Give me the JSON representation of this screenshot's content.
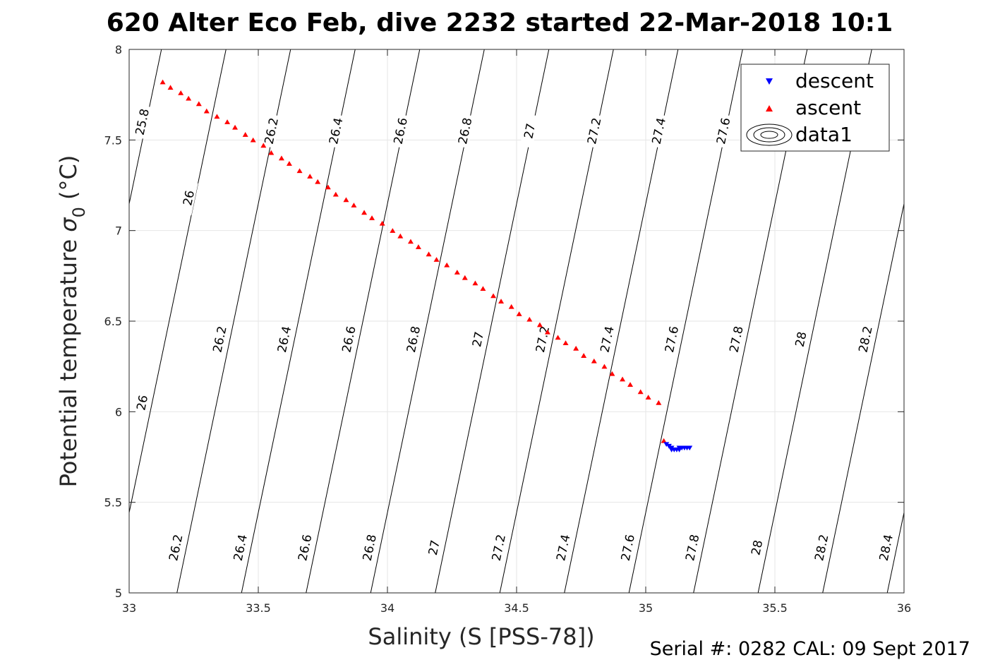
{
  "chart_data": {
    "type": "scatter",
    "title": "620 Alter Eco Feb, dive 2232 started 22-Mar-2018 10:1",
    "xlabel": "Salinity (S [PSS-78])",
    "ylabel_main": "Potential temperature ",
    "ylabel_sym": "σ",
    "ylabel_sub": "0",
    "ylabel_unit": " (°C)",
    "xlim": [
      33,
      36
    ],
    "ylim": [
      5,
      8
    ],
    "xticks": [
      33,
      33.5,
      34,
      34.5,
      35,
      35.5,
      36
    ],
    "xtick_labels": [
      "33",
      "33.5",
      "34",
      "34.5",
      "35",
      "35.5",
      "36"
    ],
    "yticks": [
      5,
      5.5,
      6,
      6.5,
      7,
      7.5,
      8
    ],
    "ytick_labels": [
      "5",
      "5.5",
      "6",
      "6.5",
      "7",
      "7.5",
      "8"
    ],
    "grid": true,
    "legend_position": "top-right",
    "legend": [
      {
        "label": "descent",
        "marker": "triangle-down",
        "color": "#0000ff"
      },
      {
        "label": "ascent",
        "marker": "triangle-up",
        "color": "#ff0000"
      },
      {
        "label": "data1",
        "marker": "contour",
        "color": "#000000"
      }
    ],
    "contour_levels": [
      {
        "level": 25.8,
        "label": "25.8",
        "x_at_t8": 33.125,
        "x_at_t5": 32.685
      },
      {
        "level": 26.0,
        "label": "26",
        "x_at_t8": 33.375,
        "x_at_t5": 32.935
      },
      {
        "level": 26.2,
        "label": "26.2",
        "x_at_t8": 33.625,
        "x_at_t5": 33.185
      },
      {
        "level": 26.4,
        "label": "26.4",
        "x_at_t8": 33.875,
        "x_at_t5": 33.435
      },
      {
        "level": 26.6,
        "label": "26.6",
        "x_at_t8": 34.125,
        "x_at_t5": 33.685
      },
      {
        "level": 26.8,
        "label": "26.8",
        "x_at_t8": 34.375,
        "x_at_t5": 33.935
      },
      {
        "level": 27.0,
        "label": "27",
        "x_at_t8": 34.625,
        "x_at_t5": 34.185
      },
      {
        "level": 27.2,
        "label": "27.2",
        "x_at_t8": 34.875,
        "x_at_t5": 34.435
      },
      {
        "level": 27.4,
        "label": "27.4",
        "x_at_t8": 35.125,
        "x_at_t5": 34.685
      },
      {
        "level": 27.6,
        "label": "27.6",
        "x_at_t8": 35.375,
        "x_at_t5": 34.935
      },
      {
        "level": 27.8,
        "label": "27.8",
        "x_at_t8": 35.625,
        "x_at_t5": 35.185
      },
      {
        "level": 28.0,
        "label": "28",
        "x_at_t8": 35.875,
        "x_at_t5": 35.435
      },
      {
        "level": 28.2,
        "label": "28.2",
        "x_at_t8": 36.125,
        "x_at_t5": 35.685
      },
      {
        "level": 28.4,
        "label": "28.4",
        "x_at_t8": 36.375,
        "x_at_t5": 35.935
      }
    ],
    "contour_label_positions": [
      {
        "label": "25.8",
        "x": 33.05,
        "y": 7.6
      },
      {
        "label": "26.2",
        "x": 33.55,
        "y": 7.55
      },
      {
        "label": "26.4",
        "x": 33.8,
        "y": 7.55
      },
      {
        "label": "26.6",
        "x": 34.05,
        "y": 7.55
      },
      {
        "label": "26.8",
        "x": 34.3,
        "y": 7.55
      },
      {
        "label": "27",
        "x": 34.55,
        "y": 7.55
      },
      {
        "label": "27.2",
        "x": 34.8,
        "y": 7.55
      },
      {
        "label": "27.4",
        "x": 35.05,
        "y": 7.55
      },
      {
        "label": "27.6",
        "x": 35.3,
        "y": 7.55
      },
      {
        "label": "26",
        "x": 33.23,
        "y": 7.18
      },
      {
        "label": "26.2",
        "x": 33.35,
        "y": 6.4
      },
      {
        "label": "26.4",
        "x": 33.6,
        "y": 6.4
      },
      {
        "label": "26.6",
        "x": 33.85,
        "y": 6.4
      },
      {
        "label": "26.8",
        "x": 34.1,
        "y": 6.4
      },
      {
        "label": "27",
        "x": 34.35,
        "y": 6.4
      },
      {
        "label": "27.2",
        "x": 34.6,
        "y": 6.4
      },
      {
        "label": "27.4",
        "x": 34.85,
        "y": 6.4
      },
      {
        "label": "27.6",
        "x": 35.1,
        "y": 6.4
      },
      {
        "label": "27.8",
        "x": 35.35,
        "y": 6.4
      },
      {
        "label": "28",
        "x": 35.6,
        "y": 6.4
      },
      {
        "label": "28.2",
        "x": 35.85,
        "y": 6.4
      },
      {
        "label": "26",
        "x": 33.05,
        "y": 6.05
      },
      {
        "label": "26.2",
        "x": 33.18,
        "y": 5.25
      },
      {
        "label": "26.4",
        "x": 33.43,
        "y": 5.25
      },
      {
        "label": "26.6",
        "x": 33.68,
        "y": 5.25
      },
      {
        "label": "26.8",
        "x": 33.93,
        "y": 5.25
      },
      {
        "label": "27",
        "x": 34.18,
        "y": 5.25
      },
      {
        "label": "27.2",
        "x": 34.43,
        "y": 5.25
      },
      {
        "label": "27.4",
        "x": 34.68,
        "y": 5.25
      },
      {
        "label": "27.6",
        "x": 34.93,
        "y": 5.25
      },
      {
        "label": "27.8",
        "x": 35.18,
        "y": 5.25
      },
      {
        "label": "28",
        "x": 35.43,
        "y": 5.25
      },
      {
        "label": "28.2",
        "x": 35.68,
        "y": 5.25
      },
      {
        "label": "28.4",
        "x": 35.93,
        "y": 5.25
      }
    ],
    "series": [
      {
        "name": "descent",
        "color": "#0000ff",
        "marker": "triangle-down",
        "x": [
          35.08,
          35.09,
          35.1,
          35.1,
          35.11,
          35.12,
          35.13,
          35.13,
          35.14,
          35.15,
          35.16,
          35.17
        ],
        "y": [
          5.82,
          5.81,
          5.8,
          5.79,
          5.79,
          5.79,
          5.79,
          5.8,
          5.8,
          5.8,
          5.8,
          5.8
        ]
      },
      {
        "name": "ascent",
        "color": "#ff0000",
        "marker": "triangle-up",
        "x": [
          33.13,
          33.16,
          33.2,
          33.23,
          33.27,
          33.3,
          33.34,
          33.38,
          33.41,
          33.45,
          33.48,
          33.52,
          33.55,
          33.59,
          33.62,
          33.66,
          33.7,
          33.73,
          33.77,
          33.8,
          33.84,
          33.87,
          33.91,
          33.94,
          33.98,
          34.02,
          34.05,
          34.09,
          34.12,
          34.16,
          34.19,
          34.23,
          34.27,
          34.3,
          34.34,
          34.37,
          34.41,
          34.44,
          34.48,
          34.51,
          34.55,
          34.59,
          34.62,
          34.66,
          34.69,
          34.73,
          34.76,
          34.8,
          34.84,
          34.87,
          34.91,
          34.94,
          34.98,
          35.01,
          35.05,
          35.07
        ],
        "y": [
          7.82,
          7.79,
          7.76,
          7.73,
          7.7,
          7.66,
          7.63,
          7.6,
          7.57,
          7.53,
          7.5,
          7.47,
          7.43,
          7.4,
          7.37,
          7.33,
          7.3,
          7.27,
          7.24,
          7.2,
          7.17,
          7.14,
          7.1,
          7.07,
          7.04,
          7.0,
          6.97,
          6.94,
          6.91,
          6.87,
          6.84,
          6.81,
          6.77,
          6.74,
          6.71,
          6.68,
          6.64,
          6.61,
          6.58,
          6.54,
          6.51,
          6.48,
          6.44,
          6.41,
          6.38,
          6.35,
          6.31,
          6.28,
          6.25,
          6.21,
          6.18,
          6.15,
          6.11,
          6.08,
          6.05,
          5.84
        ]
      }
    ]
  },
  "footer": {
    "serial": "Serial #: 0282  CAL: 09 Sept 2017"
  }
}
